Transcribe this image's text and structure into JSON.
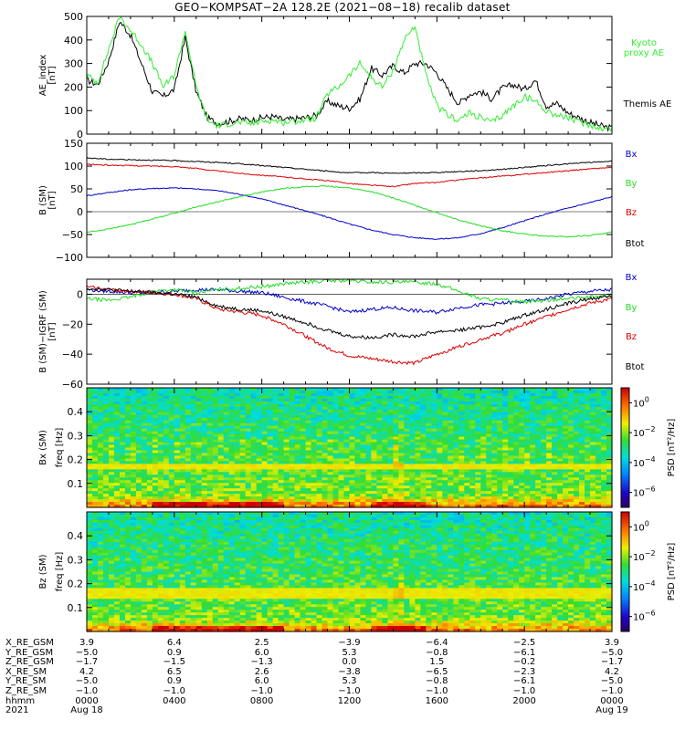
{
  "title": "GEO−KOMPSAT−2A 128.2E (2021−08−18) recalib dataset",
  "colors": {
    "black": "#000000",
    "blue": "#0000cc",
    "green": "#22dd22",
    "red": "#dd0000",
    "kyoto": "#33ee33"
  },
  "chart_data": [
    {
      "type": "line",
      "ylabel": "AE_index [nT]",
      "ylim": [
        0,
        500
      ],
      "yticks": [
        0,
        100,
        200,
        300,
        400,
        500
      ],
      "xlim": [
        0,
        24
      ],
      "series": [
        {
          "name": "Themis AE",
          "color": "#000000",
          "x": [
            0,
            0.5,
            1,
            1.5,
            2,
            2.5,
            3,
            3.5,
            4,
            4.5,
            5,
            5.5,
            6,
            6.5,
            7,
            7.5,
            8,
            8.5,
            9,
            9.5,
            10,
            10.5,
            11,
            11.5,
            12,
            12.5,
            13,
            13.5,
            14,
            14.5,
            15,
            15.5,
            16,
            16.5,
            17,
            17.5,
            18,
            18.5,
            19,
            19.5,
            20,
            20.5,
            21,
            21.5,
            22,
            22.5,
            23,
            23.5,
            24
          ],
          "y": [
            230,
            210,
            310,
            480,
            420,
            300,
            180,
            160,
            190,
            410,
            180,
            70,
            45,
            55,
            65,
            60,
            70,
            75,
            60,
            65,
            70,
            80,
            140,
            120,
            110,
            150,
            280,
            250,
            290,
            260,
            300,
            300,
            260,
            190,
            130,
            170,
            180,
            150,
            195,
            210,
            190,
            230,
            120,
            130,
            90,
            70,
            50,
            35,
            25
          ]
        },
        {
          "name": "Kyoto proxy AE",
          "color": "#33ee33",
          "x": [
            0,
            0.5,
            1,
            1.5,
            2,
            2.5,
            3,
            3.5,
            4,
            4.5,
            5,
            5.5,
            6,
            6.5,
            7,
            7.5,
            8,
            8.5,
            9,
            9.5,
            10,
            10.5,
            11,
            11.5,
            12,
            12.5,
            13,
            13.5,
            14,
            14.5,
            15,
            15.5,
            16,
            16.5,
            17,
            17.5,
            18,
            18.5,
            19,
            19.5,
            20,
            20.5,
            21,
            21.5,
            22,
            22.5,
            23,
            23.5,
            24
          ],
          "y": [
            250,
            220,
            360,
            500,
            440,
            380,
            300,
            200,
            250,
            440,
            200,
            60,
            35,
            45,
            50,
            45,
            55,
            60,
            50,
            55,
            60,
            70,
            170,
            200,
            250,
            300,
            240,
            200,
            270,
            400,
            460,
            250,
            120,
            80,
            60,
            90,
            70,
            50,
            80,
            120,
            160,
            140,
            100,
            80,
            70,
            50,
            40,
            25,
            20
          ]
        }
      ],
      "legend": [
        "Kyoto",
        "proxy AE",
        "Themis AE"
      ]
    },
    {
      "type": "line",
      "ylabel": "B (SM) [nT]",
      "ylim": [
        -100,
        150
      ],
      "yticks": [
        -100,
        -50,
        0,
        50,
        100,
        150
      ],
      "xlim": [
        0,
        24
      ],
      "series": [
        {
          "name": "Bx",
          "color": "#0000cc",
          "x": [
            0,
            1,
            2,
            3,
            4,
            5,
            6,
            7,
            8,
            9,
            10,
            11,
            12,
            13,
            14,
            15,
            16,
            17,
            18,
            19,
            20,
            21,
            22,
            23,
            24
          ],
          "y": [
            35,
            42,
            48,
            51,
            52,
            50,
            46,
            38,
            28,
            15,
            2,
            -12,
            -27,
            -40,
            -50,
            -57,
            -60,
            -57,
            -48,
            -35,
            -20,
            -5,
            8,
            20,
            33
          ]
        },
        {
          "name": "By",
          "color": "#22dd22",
          "x": [
            0,
            1,
            2,
            3,
            4,
            5,
            6,
            7,
            8,
            9,
            10,
            11,
            12,
            13,
            14,
            15,
            16,
            17,
            18,
            19,
            20,
            21,
            22,
            23,
            24
          ],
          "y": [
            -45,
            -38,
            -28,
            -16,
            -3,
            10,
            22,
            33,
            43,
            51,
            55,
            56,
            52,
            44,
            30,
            14,
            -2,
            -18,
            -31,
            -42,
            -49,
            -54,
            -55,
            -52,
            -45
          ]
        },
        {
          "name": "Bz",
          "color": "#dd0000",
          "x": [
            0,
            1,
            2,
            3,
            4,
            5,
            6,
            7,
            8,
            9,
            10,
            11,
            12,
            13,
            14,
            15,
            16,
            17,
            18,
            19,
            20,
            21,
            22,
            23,
            24
          ],
          "y": [
            104,
            102,
            101,
            100,
            99,
            95,
            89,
            84,
            80,
            76,
            72,
            68,
            62,
            58,
            55,
            62,
            64,
            70,
            74,
            78,
            82,
            86,
            90,
            94,
            97
          ]
        },
        {
          "name": "Btot",
          "color": "#000000",
          "x": [
            0,
            1,
            2,
            3,
            4,
            5,
            6,
            7,
            8,
            9,
            10,
            11,
            12,
            13,
            14,
            15,
            16,
            17,
            18,
            19,
            20,
            21,
            22,
            23,
            24
          ],
          "y": [
            118,
            115,
            114,
            113,
            112,
            110,
            108,
            105,
            101,
            97,
            93,
            89,
            85,
            86,
            84,
            85,
            86,
            88,
            90,
            93,
            97,
            101,
            105,
            108,
            111
          ]
        }
      ],
      "legend": [
        "Bx",
        "By",
        "Bz",
        "Btot"
      ]
    },
    {
      "type": "line",
      "ylabel": "B (SM)−IGRF (SM) [nT]",
      "ylim": [
        -60,
        10
      ],
      "yticks": [
        -60,
        -40,
        -20,
        0
      ],
      "xlim": [
        0,
        24
      ],
      "series": [
        {
          "name": "Bx",
          "color": "#0000cc",
          "x": [
            0,
            1,
            2,
            3,
            4,
            5,
            6,
            7,
            8,
            9,
            10,
            11,
            12,
            13,
            14,
            15,
            16,
            17,
            18,
            19,
            20,
            21,
            22,
            23,
            24
          ],
          "y": [
            3,
            2,
            1,
            1,
            2,
            3,
            3,
            2,
            1,
            -2,
            -5,
            -8,
            -12,
            -10,
            -9,
            -11,
            -12,
            -9,
            -7,
            -6,
            -5,
            -3,
            0,
            2,
            3
          ]
        },
        {
          "name": "By",
          "color": "#22dd22",
          "x": [
            0,
            1,
            2,
            3,
            4,
            5,
            6,
            7,
            8,
            9,
            10,
            11,
            12,
            13,
            14,
            15,
            16,
            17,
            18,
            19,
            20,
            21,
            22,
            23,
            24
          ],
          "y": [
            -3,
            -4,
            -2,
            2,
            3,
            1,
            3,
            4,
            5,
            7,
            8,
            9,
            9,
            8,
            8,
            8,
            7,
            2,
            -3,
            -4,
            -5,
            -4,
            -3,
            -2,
            -1
          ]
        },
        {
          "name": "Bz",
          "color": "#dd0000",
          "x": [
            0,
            1,
            2,
            3,
            4,
            5,
            6,
            7,
            8,
            9,
            10,
            11,
            12,
            13,
            14,
            15,
            16,
            17,
            18,
            19,
            20,
            21,
            22,
            23,
            24
          ],
          "y": [
            5,
            3,
            2,
            1,
            0,
            -3,
            -10,
            -12,
            -14,
            -20,
            -28,
            -36,
            -41,
            -43,
            -45,
            -46,
            -40,
            -35,
            -30,
            -26,
            -20,
            -15,
            -10,
            -6,
            -3
          ]
        },
        {
          "name": "Btot",
          "color": "#000000",
          "x": [
            0,
            1,
            2,
            3,
            4,
            5,
            6,
            7,
            8,
            9,
            10,
            11,
            12,
            13,
            14,
            15,
            16,
            17,
            18,
            19,
            20,
            21,
            22,
            23,
            24
          ],
          "y": [
            4,
            3,
            2,
            1,
            0,
            -2,
            -8,
            -10,
            -11,
            -15,
            -19,
            -24,
            -28,
            -29,
            -27,
            -28,
            -25,
            -24,
            -22,
            -19,
            -14,
            -10,
            -6,
            -3,
            -1
          ]
        }
      ],
      "legend": [
        "Bx",
        "By",
        "Bz",
        "Btot"
      ]
    },
    {
      "type": "heatmap",
      "ylabel": "Bx (SM)",
      "ylabel2": "freq [Hz]",
      "ylim": [
        0,
        0.5
      ],
      "yticks": [
        0.1,
        0.2,
        0.3,
        0.4
      ],
      "xlim": [
        0,
        24
      ],
      "colorbar": {
        "label": "PSD [nT²/Hz]",
        "ticks": [
          "10^0",
          "10^−2",
          "10^−4",
          "10^−6"
        ],
        "range_log": [
          -7,
          1
        ]
      },
      "features": {
        "band_hz": [
          0.165,
          0.175
        ],
        "lowfreq_enhancement_hz": 0.05,
        "event_time_hr": 14.2
      }
    },
    {
      "type": "heatmap",
      "ylabel": "Bz (SM)",
      "ylabel2": "freq [Hz]",
      "ylim": [
        0,
        0.5
      ],
      "yticks": [
        0.1,
        0.2,
        0.3,
        0.4
      ],
      "xlim": [
        0,
        24
      ],
      "colorbar": {
        "label": "PSD [nT²/Hz]",
        "ticks": [
          "10^0",
          "10^−2",
          "10^−4",
          "10^−6"
        ],
        "range_log": [
          -7,
          1
        ]
      },
      "features": {
        "band_hz": [
          0.14,
          0.15,
          0.165,
          0.175
        ],
        "lowfreq_enhancement_hz": 0.05,
        "event_time_hr": 14.2
      }
    }
  ],
  "right_legends": {
    "ae": {
      "kyoto": "Kyoto",
      "proxy": "proxy AE",
      "themis": "Themis AE"
    },
    "b": [
      "Bx",
      "By",
      "Bz",
      "Btot"
    ],
    "db": [
      "Bx",
      "By",
      "Bz",
      "Btot"
    ]
  },
  "ephemeris": {
    "labels": [
      "X_RE_GSM",
      "Y_RE_GSM",
      "Z_RE_GSM",
      "X_RE_SM",
      "Y_RE_SM",
      "Z_RE_SM",
      "hhmm",
      "2021"
    ],
    "columns": [
      [
        "3.9",
        "−5.0",
        "−1.7",
        "4.2",
        "−5.0",
        "−1.0",
        "0000",
        "Aug 18"
      ],
      [
        "6.4",
        "0.9",
        "−1.5",
        "6.5",
        "0.9",
        "−1.0",
        "0400",
        ""
      ],
      [
        "2.5",
        "6.0",
        "−1.3",
        "2.6",
        "6.0",
        "−1.0",
        "0800",
        ""
      ],
      [
        "−3.9",
        "5.3",
        "0.0",
        "−3.8",
        "5.3",
        "−1.0",
        "1200",
        ""
      ],
      [
        "−6.4",
        "−0.8",
        "1.5",
        "−6.5",
        "−0.8",
        "−1.0",
        "1600",
        ""
      ],
      [
        "−2.5",
        "−6.1",
        "−0.2",
        "−2.3",
        "−6.1",
        "−1.0",
        "2000",
        ""
      ],
      [
        "3.9",
        "−5.0",
        "−1.7",
        "4.2",
        "−5.0",
        "−1.0",
        "0000",
        "Aug 19"
      ]
    ]
  }
}
